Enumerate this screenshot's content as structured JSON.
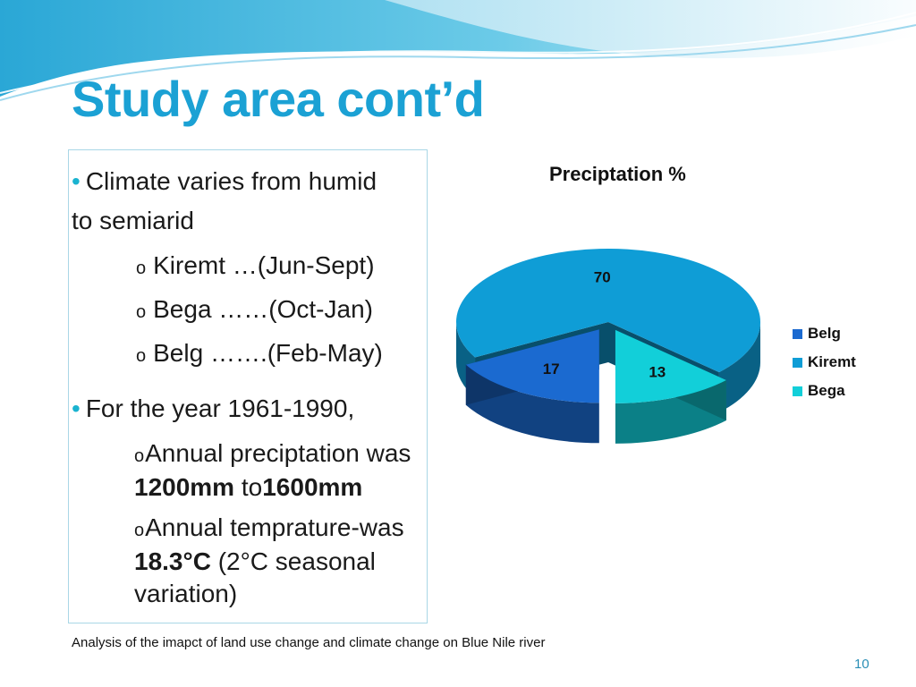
{
  "slide": {
    "title": "Study area cont’d",
    "footer": "Analysis of the imapct of land use change and climate change on Blue Nile river",
    "page_number": "10",
    "colors": {
      "title": "#1ba1d4",
      "bullet": "#1ab3d0",
      "wave": "#27b1d9",
      "page_number": "#2a8fb6"
    }
  },
  "content": {
    "bullet1_line1": "Climate varies from humid",
    "bullet1_line2": "to semiarid",
    "seasons": [
      "Kiremt …(Jun-Sept)",
      "Bega ……(Oct-Jan)",
      "Belg …….(Feb-May)"
    ],
    "bullet2": "For the year 1961-1990,",
    "precip_line1": "Annual preciptation was",
    "precip_value_low": "1200mm",
    "precip_to": " to",
    "precip_value_high": "1600mm",
    "temp_line1": "Annual temprature-was",
    "temp_value": "18.3°C",
    "temp_rest": " (2°C seasonal",
    "temp_line3": "variation)",
    "sub_marker": "o"
  },
  "chart_data": {
    "type": "pie",
    "title": "Preciptation %",
    "categories": [
      "Belg",
      "Kiremt",
      "Bega"
    ],
    "values": [
      17,
      70,
      13
    ],
    "colors": [
      "#1b6ad0",
      "#0f9dd6",
      "#12cfd9"
    ],
    "legend": "right"
  }
}
